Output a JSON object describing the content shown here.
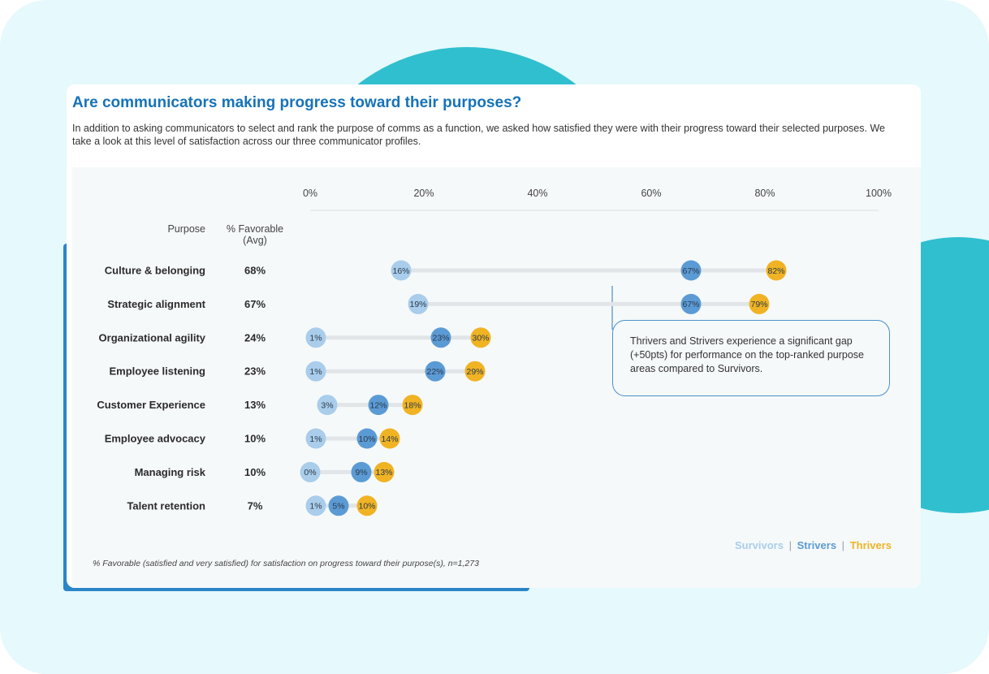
{
  "header": {
    "title": "Are communicators making progress toward their purposes?",
    "intro": "In addition to asking communicators to select and rank the purpose of comms as a function, we asked how satisfied they were with their progress toward their selected purposes. We take a look at this level of satisfaction across our three communicator profiles."
  },
  "colors": {
    "title": "#1673b8",
    "survivors": "#a9cdeb",
    "strivers": "#5b9bd5",
    "thrivers": "#f0b323",
    "track": "#e2e5e8",
    "background_teal": "#30bfcf"
  },
  "callout": {
    "text": "Thrivers and Strivers experience a significant gap (+50pts) for performance on the top-ranked purpose areas compared to Survivors."
  },
  "legend": {
    "survivors": "Survivors",
    "strivers": "Strivers",
    "thrivers": "Thrivers",
    "separator": "|"
  },
  "footnote": "% Favorable (satisfied and very satisfied) for satisfaction on progress toward their purpose(s), n=1,273",
  "chart_data": {
    "type": "dot-plot",
    "title": "",
    "xlim": [
      0,
      100
    ],
    "x_ticks": [
      "0%",
      "20%",
      "40%",
      "60%",
      "80%",
      "100%"
    ],
    "column_headers": {
      "purpose": "Purpose",
      "favorable": "% Favorable\n(Avg)"
    },
    "legend_placement": "bottom-right",
    "categories": [
      "Culture & belonging",
      "Strategic alignment",
      "Organizational agility",
      "Employee listening",
      "Customer Experience",
      "Employee advocacy",
      "Managing risk",
      "Talent retention"
    ],
    "favorable_avg": [
      "68%",
      "67%",
      "24%",
      "23%",
      "13%",
      "10%",
      "10%",
      "7%"
    ],
    "series": [
      {
        "name": "Survivors",
        "color": "#a9cdeb",
        "values": [
          16,
          19,
          1,
          1,
          3,
          1,
          0,
          1
        ]
      },
      {
        "name": "Strivers",
        "color": "#5b9bd5",
        "values": [
          67,
          67,
          23,
          22,
          12,
          10,
          9,
          5
        ]
      },
      {
        "name": "Thrivers",
        "color": "#f0b323",
        "values": [
          82,
          79,
          30,
          29,
          18,
          14,
          13,
          10
        ]
      }
    ]
  }
}
